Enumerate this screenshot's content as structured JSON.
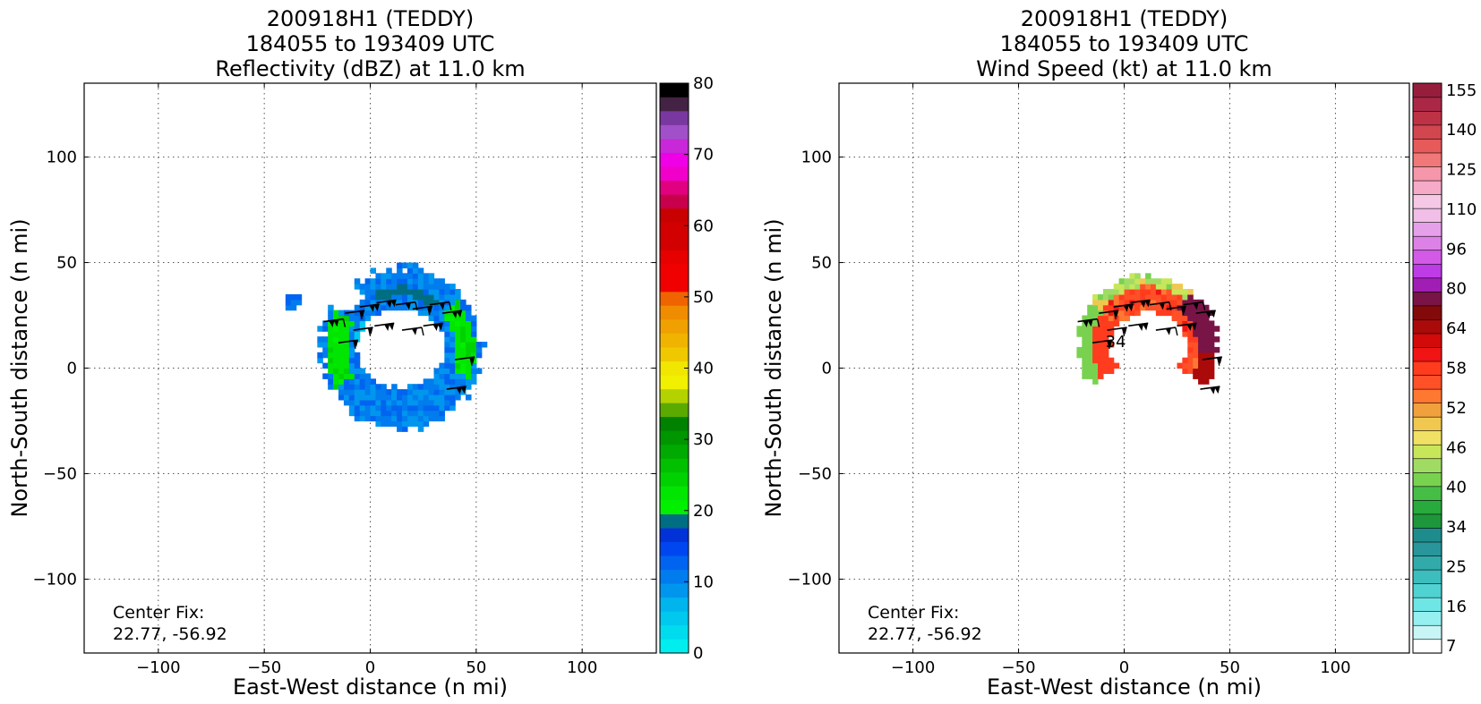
{
  "chart_data": [
    {
      "type": "heatmap",
      "panel": "reflectivity",
      "title": [
        "200918H1 (TEDDY)",
        "184055 to 193409 UTC",
        "Reflectivity (dBZ) at 11.0 km"
      ],
      "xlabel": "East-West distance (n mi)",
      "ylabel": "North-South distance (n mi)",
      "xlim": [
        -135,
        135
      ],
      "ylim": [
        -135,
        135
      ],
      "xticks": [
        -100,
        -50,
        0,
        50,
        100
      ],
      "yticks": [
        -100,
        -50,
        0,
        50,
        100
      ],
      "grid": true,
      "center_fix": {
        "label": "Center Fix:",
        "coords": "22.77, -56.92",
        "lat": 22.77,
        "lon": -56.92
      },
      "colorbar": {
        "range": [
          0,
          80
        ],
        "ticks": [
          0,
          10,
          20,
          30,
          40,
          50,
          60,
          70,
          80
        ],
        "colors": [
          "#00eeee",
          "#00dcee",
          "#00c8ee",
          "#00b4ee",
          "#0096ee",
          "#007cee",
          "#0064f0",
          "#0046f0",
          "#0032d8",
          "#006e82",
          "#00f000",
          "#00e600",
          "#00d200",
          "#00c000",
          "#00aa00",
          "#009600",
          "#008200",
          "#5aaa00",
          "#b4d200",
          "#f0f000",
          "#f0e600",
          "#f0c800",
          "#f0b400",
          "#f0a000",
          "#f08c00",
          "#f06400",
          "#f00000",
          "#f00000",
          "#e60000",
          "#d20000",
          "#d20000",
          "#c80000",
          "#c8004c",
          "#e00080",
          "#f000c8",
          "#f000e6",
          "#c828d8",
          "#a050c8",
          "#7838a0",
          "#442244",
          "#000000"
        ]
      },
      "echo_regions": [
        {
          "name": "isolated echo",
          "center": [
            -39,
            31
          ],
          "extent": [
            5,
            4
          ],
          "dominant_dbz": 10
        },
        {
          "name": "ring echo",
          "center": [
            13,
            8
          ],
          "outer_radius": [
            38,
            39
          ],
          "inner_radius": [
            20,
            17
          ],
          "dominant_dbz": 10,
          "embedded_max_dbz": 24
        }
      ]
    },
    {
      "type": "heatmap",
      "panel": "wind speed",
      "title": [
        "200918H1 (TEDDY)",
        "184055 to 193409 UTC",
        "Wind Speed (kt) at 11.0 km"
      ],
      "xlabel": "East-West distance (n mi)",
      "ylabel": "North-South distance (n mi)",
      "xlim": [
        -135,
        135
      ],
      "ylim": [
        -135,
        135
      ],
      "xticks": [
        -100,
        -50,
        0,
        50,
        100
      ],
      "yticks": [
        -100,
        -50,
        0,
        50,
        100
      ],
      "grid": true,
      "center_fix": {
        "label": "Center Fix:",
        "coords": "22.77, -56.92",
        "lat": 22.77,
        "lon": -56.92
      },
      "contour_label": "34",
      "colorbar": {
        "tick_labels": [
          "7",
          "16",
          "25",
          "34",
          "40",
          "46",
          "52",
          "58",
          "64",
          "80",
          "96",
          "110",
          "125",
          "140",
          "155"
        ],
        "colors": [
          "#ffffff",
          "#c8f5f5",
          "#96f0f0",
          "#6ee6e6",
          "#50d2d2",
          "#3cbebe",
          "#32aaaa",
          "#28969b",
          "#1e8c8c",
          "#1e963c",
          "#28aa3c",
          "#46be46",
          "#78d250",
          "#a0dc64",
          "#c8e65a",
          "#f0e164",
          "#f0c850",
          "#f0a03c",
          "#ff7832",
          "#ff5028",
          "#ff3c1e",
          "#f01414",
          "#d20a0a",
          "#aa0a0a",
          "#820a0a",
          "#781446",
          "#a01eb4",
          "#be3ce6",
          "#d25ae6",
          "#dc82e6",
          "#e6a0ea",
          "#f0bee6",
          "#f5c8e6",
          "#f5aac8",
          "#f596aa",
          "#f07878",
          "#e65a5a",
          "#d24650",
          "#be3246",
          "#aa2846",
          "#961e3c"
        ]
      },
      "wind_regions": [
        {
          "name": "wind arc",
          "center": [
            10,
            9
          ],
          "outer_radius": [
            33,
            34
          ],
          "inner_radius": [
            17,
            16
          ],
          "dominant_kt": 55,
          "max_kt": 64
        }
      ]
    }
  ]
}
